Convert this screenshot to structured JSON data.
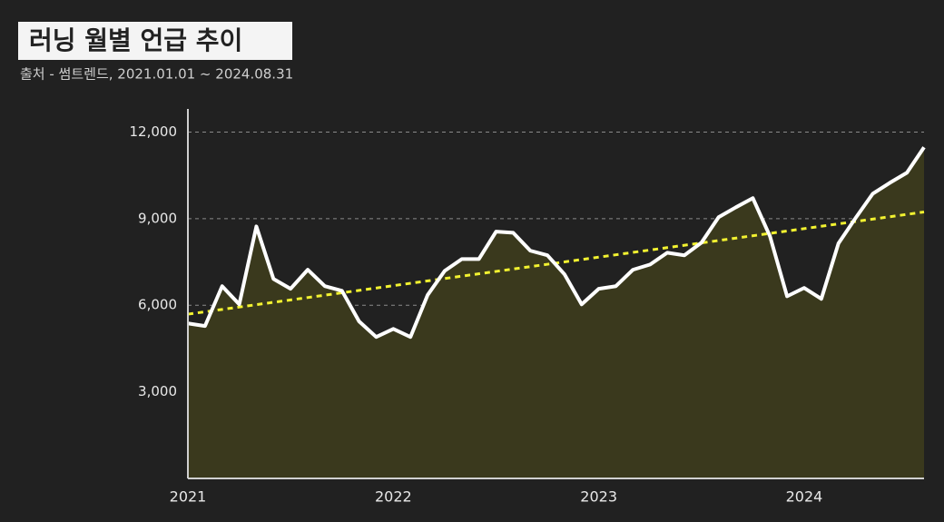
{
  "chart_data": {
    "type": "area-line",
    "title": "러닝 월별 언급 추이",
    "subtitle": "출처 - 썸트렌드, 2021.01.01 ~ 2024.08.31",
    "categories": [
      "2021",
      null,
      null,
      null,
      null,
      null,
      null,
      null,
      null,
      null,
      null,
      null,
      "2022",
      null,
      null,
      null,
      null,
      null,
      null,
      null,
      null,
      null,
      null,
      null,
      "2023",
      null,
      null,
      null,
      null,
      null,
      null,
      null,
      null,
      null,
      null,
      null,
      "2024",
      null,
      null,
      null,
      null,
      null,
      null,
      null
    ],
    "values": [
      5370,
      5280,
      6660,
      6030,
      8730,
      6910,
      6570,
      7230,
      6660,
      6500,
      5440,
      4900,
      5180,
      4900,
      6350,
      7190,
      7600,
      7600,
      8550,
      8510,
      7890,
      7730,
      7070,
      6030,
      6570,
      6660,
      7230,
      7410,
      7820,
      7730,
      8170,
      9050,
      9390,
      9710,
      8390,
      6310,
      6600,
      6220,
      8140,
      9020,
      9860,
      10240,
      10590,
      11470
    ],
    "color": "#ffffff",
    "fill_color": "#3a391d",
    "trend": {
      "color": "#f2f230",
      "values": [
        5690,
        9230
      ]
    },
    "ylim": [
      0,
      12800
    ],
    "yticks": [
      {
        "value": 3000,
        "label": "3,000"
      },
      {
        "value": 6000,
        "label": "6,000"
      },
      {
        "value": 9000,
        "label": "9,000"
      },
      {
        "value": 12000,
        "label": "12,000"
      }
    ],
    "grid": true
  }
}
